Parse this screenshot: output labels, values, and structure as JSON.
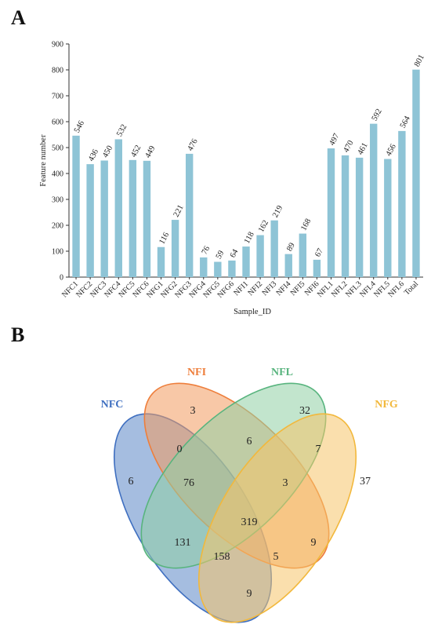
{
  "panel_a_label": "A",
  "panel_b_label": "B",
  "chart_data": [
    {
      "type": "bar",
      "xlabel": "Sample_ID",
      "ylabel": "Feature number",
      "ylim": [
        0,
        900
      ],
      "yticks": [
        0,
        100,
        200,
        300,
        400,
        500,
        600,
        700,
        800,
        900
      ],
      "bar_color": "#8ec4d6",
      "categories": [
        "NFC1",
        "NFC2",
        "NFC3",
        "NFC4",
        "NFC5",
        "NFC6",
        "NFG1",
        "NFG2",
        "NFG3",
        "NFG4",
        "NFG5",
        "NFG6",
        "NFI1",
        "NFI2",
        "NFI3",
        "NFI4",
        "NFI5",
        "NFI6",
        "NFL1",
        "NFL2",
        "NFL3",
        "NFL4",
        "NFL5",
        "NFL6",
        "Total"
      ],
      "values": [
        546,
        436,
        450,
        532,
        452,
        449,
        116,
        221,
        476,
        76,
        59,
        64,
        118,
        162,
        219,
        89,
        168,
        67,
        497,
        470,
        461,
        592,
        456,
        564,
        801
      ],
      "grid": false
    },
    {
      "type": "venn",
      "sets": [
        {
          "name": "NFC",
          "color": "#3f6fc0",
          "fill": "#5b86c6"
        },
        {
          "name": "NFI",
          "color": "#ee7e3b",
          "fill": "#f39b5f"
        },
        {
          "name": "NFL",
          "color": "#58b47e",
          "fill": "#8fd0a4"
        },
        {
          "name": "NFG",
          "color": "#f2b83c",
          "fill": "#f5c56a"
        }
      ],
      "regions": [
        {
          "sets": [
            "NFC"
          ],
          "count": 6
        },
        {
          "sets": [
            "NFI"
          ],
          "count": 3
        },
        {
          "sets": [
            "NFL"
          ],
          "count": 32
        },
        {
          "sets": [
            "NFG"
          ],
          "count": 37
        },
        {
          "sets": [
            "NFC",
            "NFI"
          ],
          "count": 0
        },
        {
          "sets": [
            "NFI",
            "NFL"
          ],
          "count": 6
        },
        {
          "sets": [
            "NFL",
            "NFG"
          ],
          "count": 7
        },
        {
          "sets": [
            "NFC",
            "NFI",
            "NFL"
          ],
          "count": 76
        },
        {
          "sets": [
            "NFI",
            "NFL",
            "NFG"
          ],
          "count": 3
        },
        {
          "sets": [
            "NFC",
            "NFI",
            "NFL",
            "NFG"
          ],
          "count": 319
        },
        {
          "sets": [
            "NFC",
            "NFL"
          ],
          "count": 131
        },
        {
          "sets": [
            "NFI",
            "NFG"
          ],
          "count": 9
        },
        {
          "sets": [
            "NFC",
            "NFL",
            "NFG"
          ],
          "count": 158
        },
        {
          "sets": [
            "NFC",
            "NFI",
            "NFG"
          ],
          "count": 5
        },
        {
          "sets": [
            "NFC",
            "NFG"
          ],
          "count": 9
        }
      ]
    }
  ]
}
